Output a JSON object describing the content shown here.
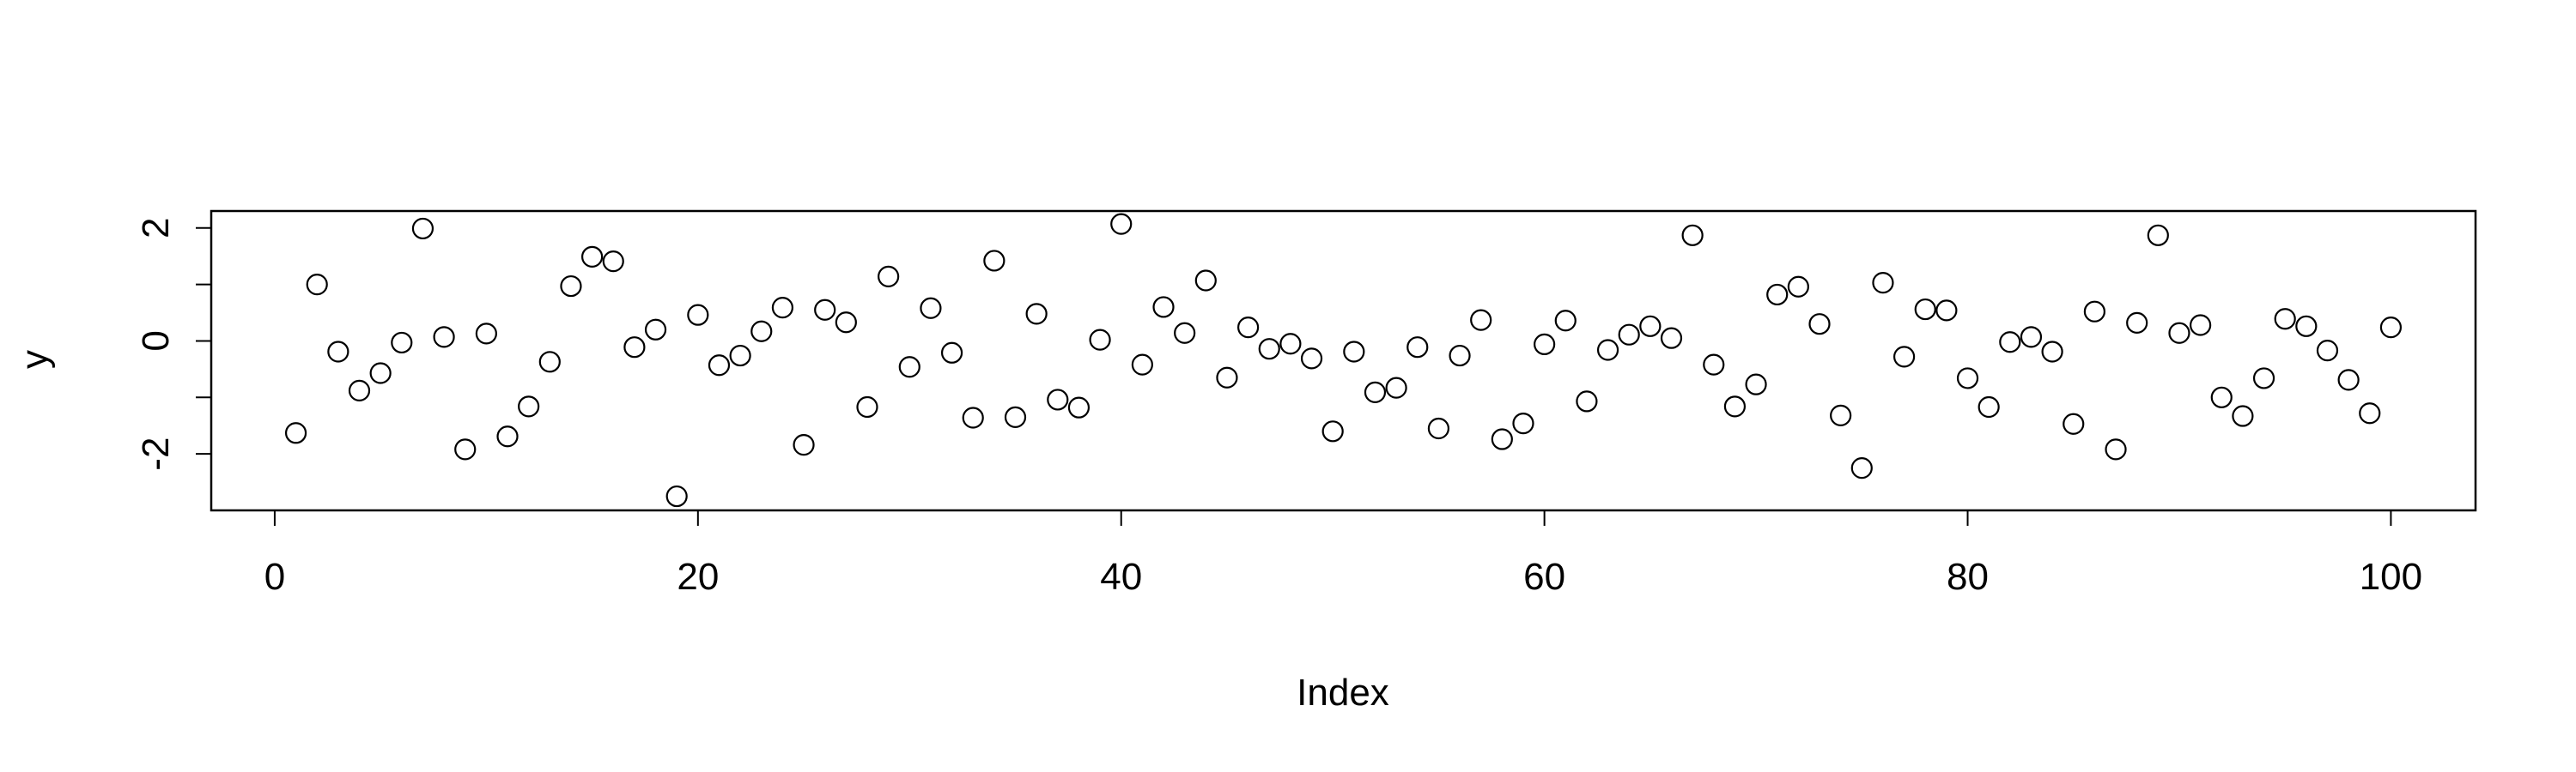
{
  "chart_data": {
    "type": "scatter",
    "title": "",
    "xlabel": "Index",
    "ylabel": "y",
    "xlim": [
      -3,
      104
    ],
    "ylim": [
      -3,
      2.3
    ],
    "x_ticks": [
      0,
      20,
      40,
      60,
      80,
      100
    ],
    "x_tick_labels": [
      "0",
      "20",
      "40",
      "60",
      "80",
      "100"
    ],
    "y_ticks": [
      -2,
      -1,
      0,
      1,
      2
    ],
    "y_tick_labels": [
      "-2",
      "",
      "0",
      "",
      "2"
    ],
    "grid": false,
    "legend": "none",
    "marker": "open-circle",
    "x": [
      1,
      2,
      3,
      4,
      5,
      6,
      7,
      8,
      9,
      10,
      11,
      12,
      13,
      14,
      15,
      16,
      17,
      18,
      19,
      20,
      21,
      22,
      23,
      24,
      25,
      26,
      27,
      28,
      29,
      30,
      31,
      32,
      33,
      34,
      35,
      36,
      37,
      38,
      39,
      40,
      41,
      42,
      43,
      44,
      45,
      46,
      47,
      48,
      49,
      50,
      51,
      52,
      53,
      54,
      55,
      56,
      57,
      58,
      59,
      60,
      61,
      62,
      63,
      64,
      65,
      66,
      67,
      68,
      69,
      70,
      71,
      72,
      73,
      74,
      75,
      76,
      77,
      78,
      79,
      80,
      81,
      82,
      83,
      84,
      85,
      86,
      87,
      88,
      89,
      90,
      91,
      92,
      93,
      94,
      95,
      96,
      97,
      98,
      99,
      100
    ],
    "y": [
      -1.63,
      1.0,
      -0.19,
      -0.88,
      -0.57,
      -0.03,
      1.99,
      0.07,
      -1.92,
      0.13,
      -1.69,
      -1.16,
      -0.37,
      0.97,
      1.49,
      1.41,
      -0.11,
      0.2,
      -2.75,
      0.46,
      -0.43,
      -0.26,
      0.17,
      0.59,
      -1.84,
      0.55,
      0.33,
      -1.17,
      1.14,
      -0.46,
      0.58,
      -0.21,
      -1.36,
      1.42,
      -1.35,
      0.48,
      -1.04,
      -1.18,
      0.02,
      2.07,
      -0.42,
      0.6,
      0.14,
      1.07,
      -0.65,
      0.24,
      -0.14,
      -0.05,
      -0.31,
      -1.6,
      -0.19,
      -0.91,
      -0.83,
      -0.11,
      -1.55,
      -0.26,
      0.37,
      -1.74,
      -1.46,
      -0.06,
      0.36,
      -1.07,
      -0.16,
      0.11,
      0.26,
      0.05,
      1.87,
      -0.42,
      -1.16,
      -0.77,
      0.82,
      0.96,
      0.3,
      -1.32,
      -2.25,
      1.03,
      -0.28,
      0.56,
      0.54,
      -0.66,
      -1.17,
      -0.02,
      0.07,
      -0.19,
      -1.47,
      0.52,
      -1.92,
      0.32,
      1.87,
      0.14,
      0.28,
      -1.0,
      -1.33,
      -0.66,
      0.39,
      0.26,
      -0.17,
      -0.69,
      -1.28,
      0.24
    ]
  }
}
